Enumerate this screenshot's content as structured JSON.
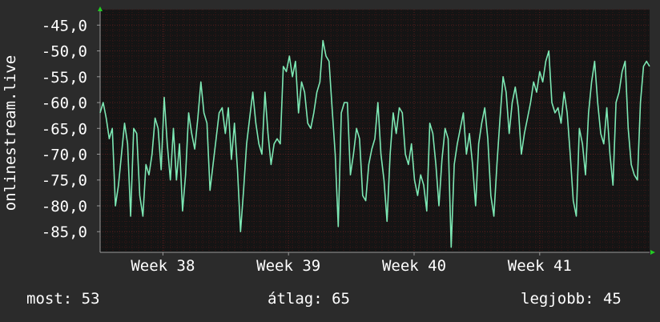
{
  "chart_data": {
    "type": "line",
    "title": "",
    "xlabel": "",
    "ylabel": "onlinestream.live",
    "ylim": [
      -89,
      -42
    ],
    "yticks": [
      -45,
      -50,
      -55,
      -60,
      -65,
      -70,
      -75,
      -80,
      -85
    ],
    "ytick_labels": [
      "-45,0",
      "-50,0",
      "-55,0",
      "-60,0",
      "-65,0",
      "-70,0",
      "-75,0",
      "-80,0",
      "-85,0"
    ],
    "xlim": [
      0,
      175
    ],
    "xticks": [
      20,
      60,
      100,
      140
    ],
    "xtick_labels": [
      "Week 38",
      "Week 39",
      "Week 40",
      "Week 41"
    ],
    "grid": true,
    "colors": {
      "background": "#2b2b2b",
      "plot_bg": "#141414",
      "line": "#7de8b4",
      "grid": "#4a1a1a",
      "axis": "#9a9a9a",
      "arrow": "#22cc22"
    },
    "series": [
      {
        "values": [
          -62,
          -60,
          -63,
          -67,
          -65,
          -80,
          -76,
          -70,
          -64,
          -68,
          -82,
          -65,
          -66,
          -78,
          -82,
          -72,
          -74,
          -70,
          -63,
          -65,
          -73,
          -59,
          -68,
          -75,
          -65,
          -75,
          -68,
          -81,
          -74,
          -62,
          -66,
          -69,
          -63,
          -56,
          -62,
          -64,
          -77,
          -72,
          -67,
          -62,
          -61,
          -66,
          -61,
          -71,
          -64,
          -73,
          -85,
          -77,
          -68,
          -63,
          -58,
          -64,
          -68,
          -70,
          -58,
          -66,
          -72,
          -68,
          -67,
          -68,
          -53,
          -54,
          -51,
          -55,
          -52,
          -62,
          -56,
          -58,
          -64,
          -65,
          -62,
          -58,
          -56,
          -48,
          -51,
          -52,
          -61,
          -70,
          -84,
          -62,
          -60,
          -60,
          -74,
          -70,
          -65,
          -67,
          -78,
          -79,
          -72,
          -69,
          -67,
          -60,
          -70,
          -75,
          -83,
          -70,
          -62,
          -66,
          -61,
          -62,
          -70,
          -72,
          -68,
          -75,
          -78,
          -74,
          -76,
          -81,
          -64,
          -66,
          -72,
          -80,
          -71,
          -65,
          -67,
          -88,
          -72,
          -68,
          -65,
          -62,
          -70,
          -66,
          -72,
          -80,
          -68,
          -64,
          -61,
          -67,
          -78,
          -82,
          -72,
          -63,
          -55,
          -58,
          -66,
          -60,
          -57,
          -61,
          -70,
          -66,
          -63,
          -60,
          -56,
          -58,
          -54,
          -56,
          -52,
          -50,
          -60,
          -62,
          -61,
          -64,
          -58,
          -62,
          -70,
          -79,
          -82,
          -65,
          -68,
          -74,
          -62,
          -56,
          -52,
          -60,
          -66,
          -68,
          -61,
          -70,
          -76,
          -60,
          -58,
          -54,
          -52,
          -65,
          -72,
          -74,
          -75,
          -60,
          -53,
          -52,
          -53
        ]
      }
    ]
  },
  "stats": {
    "now": "most: 53",
    "avg": "átlag: 65",
    "best": "legjobb: 45"
  }
}
